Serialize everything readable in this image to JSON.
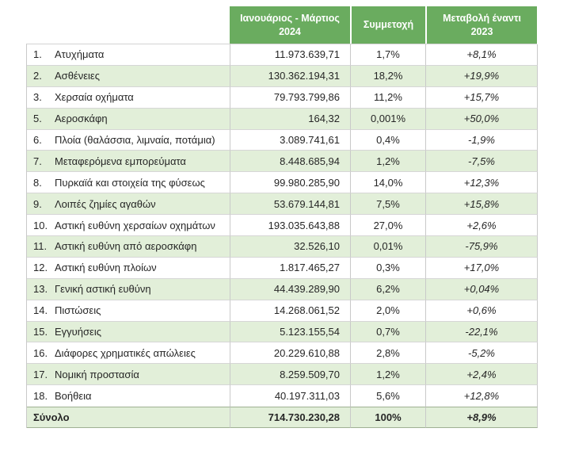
{
  "table": {
    "header": {
      "period": "Ιανουάριος - Μάρτιος\n2024",
      "share": "Συμμετοχή",
      "change": "Μεταβολή έναντι\n2023"
    },
    "rows": [
      {
        "num": "1.",
        "label": "Ατυχήματα",
        "value": "11.973.639,71",
        "share": "1,7%",
        "change": "+8,1%"
      },
      {
        "num": "2.",
        "label": "Ασθένειες",
        "value": "130.362.194,31",
        "share": "18,2%",
        "change": "+19,9%"
      },
      {
        "num": "3.",
        "label": "Χερσαία οχήματα",
        "value": "79.793.799,86",
        "share": "11,2%",
        "change": "+15,7%"
      },
      {
        "num": "5.",
        "label": "Αεροσκάφη",
        "value": "164,32",
        "share": "0,001%",
        "change": "+50,0%"
      },
      {
        "num": "6.",
        "label": "Πλοία (θαλάσσια, λιμναία, ποτάμια)",
        "value": "3.089.741,61",
        "share": "0,4%",
        "change": "-1,9%"
      },
      {
        "num": "7.",
        "label": "Μεταφερόμενα εμπορεύματα",
        "value": "8.448.685,94",
        "share": "1,2%",
        "change": "-7,5%"
      },
      {
        "num": "8.",
        "label": "Πυρκαϊά και στοιχεία της φύσεως",
        "value": "99.980.285,90",
        "share": "14,0%",
        "change": "+12,3%"
      },
      {
        "num": "9.",
        "label": "Λοιπές ζημίες αγαθών",
        "value": "53.679.144,81",
        "share": "7,5%",
        "change": "+15,8%"
      },
      {
        "num": "10.",
        "label": "Αστική ευθύνη χερσαίων οχημάτων",
        "value": "193.035.643,88",
        "share": "27,0%",
        "change": "+2,6%"
      },
      {
        "num": "11.",
        "label": "Αστική ευθύνη από αεροσκάφη",
        "value": "32.526,10",
        "share": "0,01%",
        "change": "-75,9%"
      },
      {
        "num": "12.",
        "label": "Αστική ευθύνη πλοίων",
        "value": "1.817.465,27",
        "share": "0,3%",
        "change": "+17,0%"
      },
      {
        "num": "13.",
        "label": "Γενική αστική ευθύνη",
        "value": "44.439.289,90",
        "share": "6,2%",
        "change": "+0,04%"
      },
      {
        "num": "14.",
        "label": "Πιστώσεις",
        "value": "14.268.061,52",
        "share": "2,0%",
        "change": "+0,6%"
      },
      {
        "num": "15.",
        "label": "Εγγυήσεις",
        "value": "5.123.155,54",
        "share": "0,7%",
        "change": "-22,1%"
      },
      {
        "num": "16.",
        "label": "Διάφορες χρηματικές απώλειες",
        "value": "20.229.610,88",
        "share": "2,8%",
        "change": "-5,2%"
      },
      {
        "num": "17.",
        "label": "Νομική προστασία",
        "value": "8.259.509,70",
        "share": "1,2%",
        "change": "+2,4%"
      },
      {
        "num": "18.",
        "label": "Βοήθεια",
        "value": "40.197.311,03",
        "share": "5,6%",
        "change": "+12,8%"
      }
    ],
    "total": {
      "label": "Σύνολο",
      "value": "714.730.230,28",
      "share": "100%",
      "change": "+8,9%"
    }
  },
  "colors": {
    "header_green": "#6aac5f",
    "row_alt_green": "#e2efd9",
    "header_text": "#ffffff",
    "body_text": "#262626"
  }
}
